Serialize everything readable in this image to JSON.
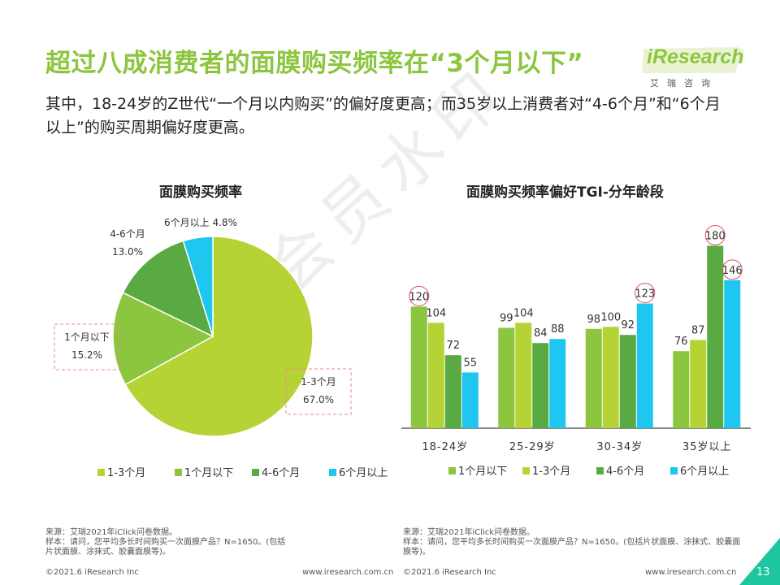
{
  "header": {
    "title": "超过八成消费者的面膜购买频率在“3个月以下”",
    "subtitle": "其中，18-24岁的Z世代“一个月以内购买”的偏好度更高；而35岁以上消费者对“4-6个月”和“6个月以上”的购买周期偏好度更高。",
    "logo": "iResearch",
    "logo_sub": "艾瑞咨询"
  },
  "watermark": "非会员水印",
  "colors": {
    "c1_3": "#b5d334",
    "c_lt1": "#8cc63f",
    "c4_6": "#5aaa44",
    "c6p": "#1ec6f0",
    "accent": "#8cc63f",
    "circle": "#e05060"
  },
  "chart_data": [
    {
      "type": "pie",
      "title": "面膜购买频率",
      "slices": [
        {
          "label": "1-3个月",
          "value": 67.0,
          "display": "67.0%"
        },
        {
          "label": "1个月以下",
          "value": 15.2,
          "display": "15.2%"
        },
        {
          "label": "4-6个月",
          "value": 13.0,
          "display": "13.0%"
        },
        {
          "label": "6个月以上",
          "value": 4.8,
          "display": "4.8%"
        }
      ],
      "legend": [
        "1-3个月",
        "1个月以下",
        "4-6个月",
        "6个月以上"
      ]
    },
    {
      "type": "bar",
      "title": "面膜购买频率偏好TGI-分年龄段",
      "categories": [
        "18-24岁",
        "25-29岁",
        "30-34岁",
        "35岁以上"
      ],
      "series": [
        {
          "name": "1个月以下",
          "values": [
            120,
            99,
            98,
            76
          ]
        },
        {
          "name": "1-3个月",
          "values": [
            104,
            104,
            100,
            87
          ]
        },
        {
          "name": "4-6个月",
          "values": [
            72,
            84,
            92,
            180
          ]
        },
        {
          "name": "6个月以上",
          "values": [
            55,
            88,
            123,
            146
          ]
        }
      ],
      "highlighted": [
        [
          0,
          0
        ],
        [
          2,
          3
        ],
        [
          3,
          2
        ],
        [
          3,
          3
        ]
      ],
      "ylim": [
        0,
        190
      ],
      "legend": [
        "1个月以下",
        "1-3个月",
        "4-6个月",
        "6个月以上"
      ]
    }
  ],
  "footer": {
    "left_source": "来源：艾瑞2021年iClick问卷数据。",
    "left_sample": "样本：请问，您平均多长时间购买一次面膜产品？N=1650。(包括片状面膜、涂抹式、胶囊面膜等)。",
    "right_source": "来源：艾瑞2021年iClick问卷数据。",
    "right_sample": "样本：请问，您平均多长时间购买一次面膜产品？N=1650。(包括片状面膜、涂抹式、胶囊面膜等)。",
    "copyright_left": "©2021.6 iResearch Inc",
    "website_left": "www.iresearch.com.cn",
    "copyright_right": "©2021.6 iResearch Inc",
    "website_right": "www.iresearch.com.cn",
    "page_number": "13"
  }
}
